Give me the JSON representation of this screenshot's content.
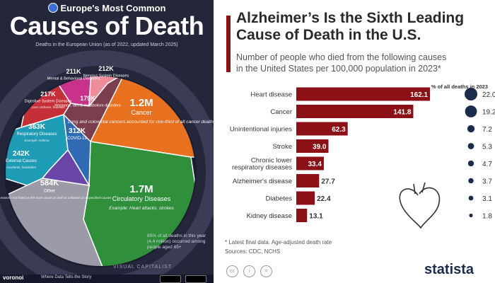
{
  "left_panel": {
    "kicker": "Europe's Most Common",
    "title": "Causes of Death",
    "subtitle": "Deaths in the European Union (as of 2022, updated March 2025)",
    "bottom_note": "85% of all deaths in this year (4.4 million) occurred among people aged 65+",
    "watermark": "VISUAL CAPITALIST",
    "footer_brand": "voronoi",
    "footer_tag": "Where Data Tells the Story",
    "chart_data": {
      "type": "voronoi",
      "cells": [
        {
          "value": "1.7M",
          "name": "Circulatory Diseases",
          "note": "Example: Heart attacks, strokes",
          "color": "#2f8f3a"
        },
        {
          "value": "1.2M",
          "name": "Cancer",
          "note": "Lung and colorectal cancers accounted for one-third of all cancer deaths",
          "color": "#e8711f"
        },
        {
          "value": "584K",
          "name": "Other",
          "note": "Includes reasons not listed as the main cause as well as unknown & unspecified causes",
          "color": "#9b9ba8"
        },
        {
          "value": "363K",
          "name": "Respiratory Diseases",
          "note": "Example: Asthma",
          "color": "#1e9bb5"
        },
        {
          "value": "312K",
          "name": "COVID-19",
          "note": "",
          "color": "#2f6ab3"
        },
        {
          "value": "242K",
          "name": "External Causes",
          "note": "Accidents, homicides",
          "color": "#6a45a8"
        },
        {
          "value": "217K",
          "name": "Digestive System Diseases",
          "note": "Liver cirrhosis, hepatitis",
          "color": "#c52f37"
        },
        {
          "value": "211K",
          "name": "Mental & Behavioral Disorders",
          "note": "",
          "color": "#c8328a"
        },
        {
          "value": "212K",
          "name": "Nervous System Diseases",
          "note": "",
          "color": "#ef8c9a"
        },
        {
          "value": "179K",
          "name": "Hormone, diet & metabolism disorders",
          "note": "",
          "color": "#7a3e4e"
        }
      ]
    }
  },
  "right_panel": {
    "title_line1": "Alzheimer’s Is the Sixth Leading",
    "title_line2": "Cause of Death in the U.S.",
    "subtitle_line1": "Number of people who died from the following causes",
    "subtitle_line2": "in the United States per 100,000 population in 2023*",
    "column_header": "% of all deaths in 2023",
    "footnote": "* Latest final data. Age-adjusted death rate",
    "sources": "Sources: CDC, NCHS",
    "brand": "statista",
    "chart_data": {
      "type": "bar",
      "orientation": "horizontal",
      "categories": [
        "Heart disease",
        "Cancer",
        "Unintentional injuries",
        "Stroke",
        "Chronic lower respiratory diseases",
        "Alzheimer's disease",
        "Diabetes",
        "Kidney disease"
      ],
      "label_lines": [
        [
          "Heart disease"
        ],
        [
          "Cancer"
        ],
        [
          "Unintentional injuries"
        ],
        [
          "Stroke"
        ],
        [
          "Chronic lower",
          "respiratory diseases"
        ],
        [
          "Alzheimer's disease"
        ],
        [
          "Diabetes"
        ],
        [
          "Kidney disease"
        ]
      ],
      "values": [
        162.1,
        141.8,
        62.3,
        39.0,
        33.4,
        27.7,
        22.4,
        13.1
      ],
      "value_labels": [
        "162.1",
        "141.8",
        "62.3",
        "39.0",
        "33.4",
        "27.7",
        "22.4",
        "13.1"
      ],
      "pct_labels": [
        "22.0",
        "19.2",
        "7.2",
        "5.3",
        "4.7",
        "3.7",
        "3.1",
        "1.8"
      ],
      "pct_values": [
        22.0,
        19.2,
        7.2,
        5.3,
        4.7,
        3.7,
        3.1,
        1.8
      ],
      "bar_color": "#8c1117",
      "dot_color": "#1a2b4c",
      "xlim": [
        0,
        180
      ]
    }
  }
}
